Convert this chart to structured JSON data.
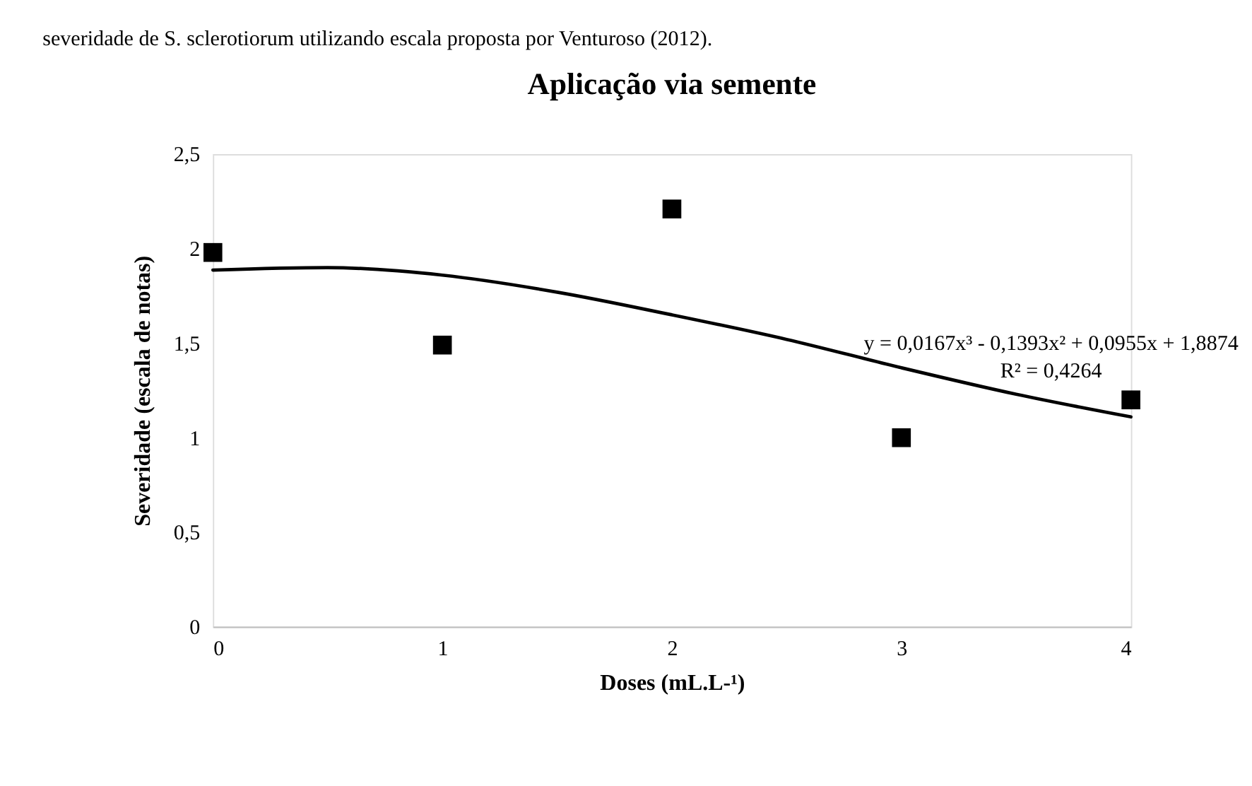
{
  "chart_data": {
    "type": "scatter",
    "title": "Aplicação via semente",
    "xlabel": "Doses (mL.L-¹)",
    "ylabel": "Severidade (escala de notas)",
    "x": [
      0,
      1,
      2,
      3,
      4
    ],
    "series": [
      {
        "color": "#000000",
        "marker": "square",
        "values": [
          1.98,
          1.49,
          2.21,
          1.0,
          1.2
        ]
      },
      {
        "type": "line",
        "color": "#000000",
        "line_style": "solid",
        "x": [
          0,
          0.5,
          1,
          1.5,
          2,
          2.5,
          3,
          3.5,
          4
        ],
        "values": [
          1.887,
          1.9,
          1.86,
          1.77,
          1.65,
          1.52,
          1.37,
          1.23,
          1.11
        ]
      }
    ],
    "xlim": [
      0,
      4
    ],
    "xticks": [
      0,
      1,
      2,
      3,
      4
    ],
    "ylim": [
      0,
      2.5
    ],
    "yticks": [
      0,
      {
        "value": 0.5,
        "label": "0,5"
      },
      1,
      {
        "value": 1.5,
        "label": "1,5"
      },
      2,
      {
        "value": 2.5,
        "label": "2,5"
      }
    ],
    "grid": false,
    "legend": false,
    "annotations": [
      "severidade de S. sclerotiorum utilizando escala proposta por Venturoso (2012).",
      "y = 0,0167x³ - 0,1393x² + 0,0955x + 1,8874",
      "R² = 0,4264"
    ]
  }
}
